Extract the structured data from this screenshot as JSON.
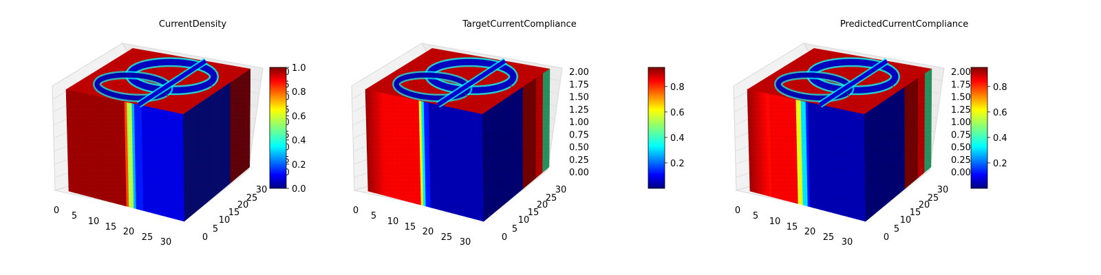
{
  "chart_data": [
    {
      "type": "3d-voxel",
      "title": "CurrentDensity",
      "x_ticks": [
        "0",
        "5",
        "10",
        "15",
        "20",
        "25",
        "30"
      ],
      "y_ticks": [
        "0",
        "5",
        "10",
        "15",
        "20",
        "25",
        "30"
      ],
      "z_ticks": [
        "0.00",
        "0.25",
        "0.50",
        "0.75",
        "1.00",
        "1.25",
        "1.50",
        "1.75",
        "2.00"
      ],
      "z_ticks_obscured": true,
      "xlim": [
        0,
        32
      ],
      "ylim": [
        0,
        32
      ],
      "zlim": [
        0,
        2
      ],
      "colormap": "jet",
      "colorbar": {
        "ticks": [
          "0.0",
          "0.2",
          "0.4",
          "0.6",
          "0.8",
          "1.0"
        ],
        "range": [
          0.0,
          1.0
        ]
      },
      "grid": true
    },
    {
      "type": "3d-voxel",
      "title": "TargetCurrentCompliance",
      "x_ticks": [
        "0",
        "5",
        "10",
        "15",
        "20",
        "25",
        "30"
      ],
      "y_ticks": [
        "0",
        "5",
        "10",
        "15",
        "20",
        "25",
        "30"
      ],
      "z_ticks": [
        "0.00",
        "0.25",
        "0.50",
        "0.75",
        "1.00",
        "1.25",
        "1.50",
        "1.75",
        "2.00"
      ],
      "z_ticks_obscured": false,
      "xlim": [
        0,
        32
      ],
      "ylim": [
        0,
        32
      ],
      "zlim": [
        0,
        2
      ],
      "colormap": "jet",
      "colorbar": {
        "ticks": [
          "0.2",
          "0.4",
          "0.6",
          "0.8"
        ],
        "range": [
          0.0,
          0.95
        ]
      },
      "grid": true
    },
    {
      "type": "3d-voxel",
      "title": "PredictedCurrentCompliance",
      "x_ticks": [
        "0",
        "5",
        "10",
        "15",
        "20",
        "25",
        "30"
      ],
      "y_ticks": [
        "0",
        "5",
        "10",
        "15",
        "20",
        "25",
        "30"
      ],
      "z_ticks": [
        "0.00",
        "0.25",
        "0.50",
        "0.75",
        "1.00",
        "1.25",
        "1.50",
        "1.75",
        "2.00"
      ],
      "z_ticks_obscured": false,
      "xlim": [
        0,
        32
      ],
      "ylim": [
        0,
        32
      ],
      "zlim": [
        0,
        2
      ],
      "colormap": "jet",
      "colorbar": {
        "ticks": [
          "0.2",
          "0.4",
          "0.6",
          "0.8"
        ],
        "range": [
          0.0,
          0.95
        ]
      },
      "grid": true
    }
  ]
}
